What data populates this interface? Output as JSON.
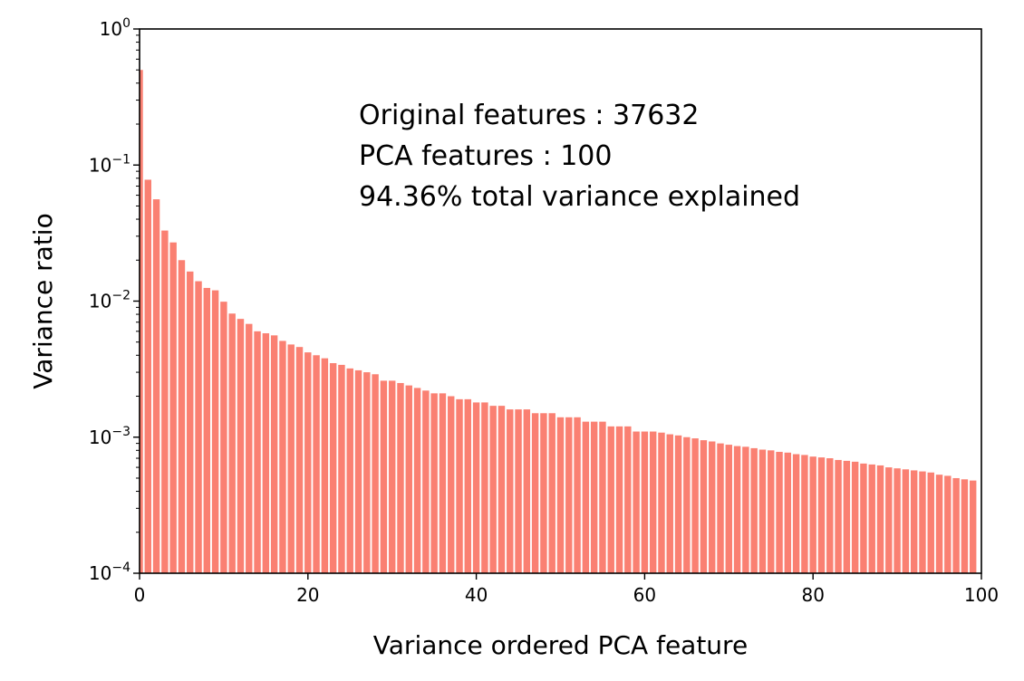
{
  "chart_data": {
    "type": "bar",
    "title": "",
    "xlabel": "Variance ordered PCA feature",
    "ylabel": "Variance ratio",
    "xlim": [
      0,
      100
    ],
    "ylim": [
      0.0001,
      1
    ],
    "yscale": "log",
    "grid": false,
    "bar_color": "#fa8072",
    "x_ticks": [
      0,
      20,
      40,
      60,
      80,
      100
    ],
    "y_ticks": [
      {
        "value": 1,
        "base": "10",
        "exp": "0"
      },
      {
        "value": 0.1,
        "base": "10",
        "exp": "−1"
      },
      {
        "value": 0.01,
        "base": "10",
        "exp": "−2"
      },
      {
        "value": 0.001,
        "base": "10",
        "exp": "−3"
      },
      {
        "value": 0.0001,
        "base": "10",
        "exp": "−4"
      }
    ],
    "annotation_lines": [
      "Original features : 37632",
      "PCA features : 100",
      "94.36% total variance explained"
    ],
    "values": [
      0.5,
      0.078,
      0.056,
      0.033,
      0.027,
      0.02,
      0.0165,
      0.014,
      0.0125,
      0.012,
      0.0099,
      0.0081,
      0.0074,
      0.0068,
      0.006,
      0.0058,
      0.0056,
      0.0051,
      0.0048,
      0.0046,
      0.0042,
      0.004,
      0.0038,
      0.0035,
      0.0034,
      0.0032,
      0.0031,
      0.003,
      0.0029,
      0.0026,
      0.0026,
      0.0025,
      0.0024,
      0.0023,
      0.0022,
      0.0021,
      0.0021,
      0.002,
      0.0019,
      0.0019,
      0.0018,
      0.0018,
      0.0017,
      0.0017,
      0.0016,
      0.0016,
      0.0016,
      0.0015,
      0.0015,
      0.0015,
      0.0014,
      0.0014,
      0.0014,
      0.0013,
      0.0013,
      0.0013,
      0.0012,
      0.0012,
      0.0012,
      0.0011,
      0.0011,
      0.0011,
      0.00108,
      0.00105,
      0.00103,
      0.001,
      0.00098,
      0.00095,
      0.00093,
      0.0009,
      0.00088,
      0.00086,
      0.00085,
      0.00083,
      0.00081,
      0.0008,
      0.00078,
      0.00077,
      0.00075,
      0.00074,
      0.00072,
      0.00071,
      0.0007,
      0.00068,
      0.00067,
      0.00066,
      0.00064,
      0.00063,
      0.00062,
      0.0006,
      0.00059,
      0.00058,
      0.00057,
      0.00056,
      0.00055,
      0.00053,
      0.00052,
      0.0005,
      0.00049,
      0.00048
    ]
  }
}
